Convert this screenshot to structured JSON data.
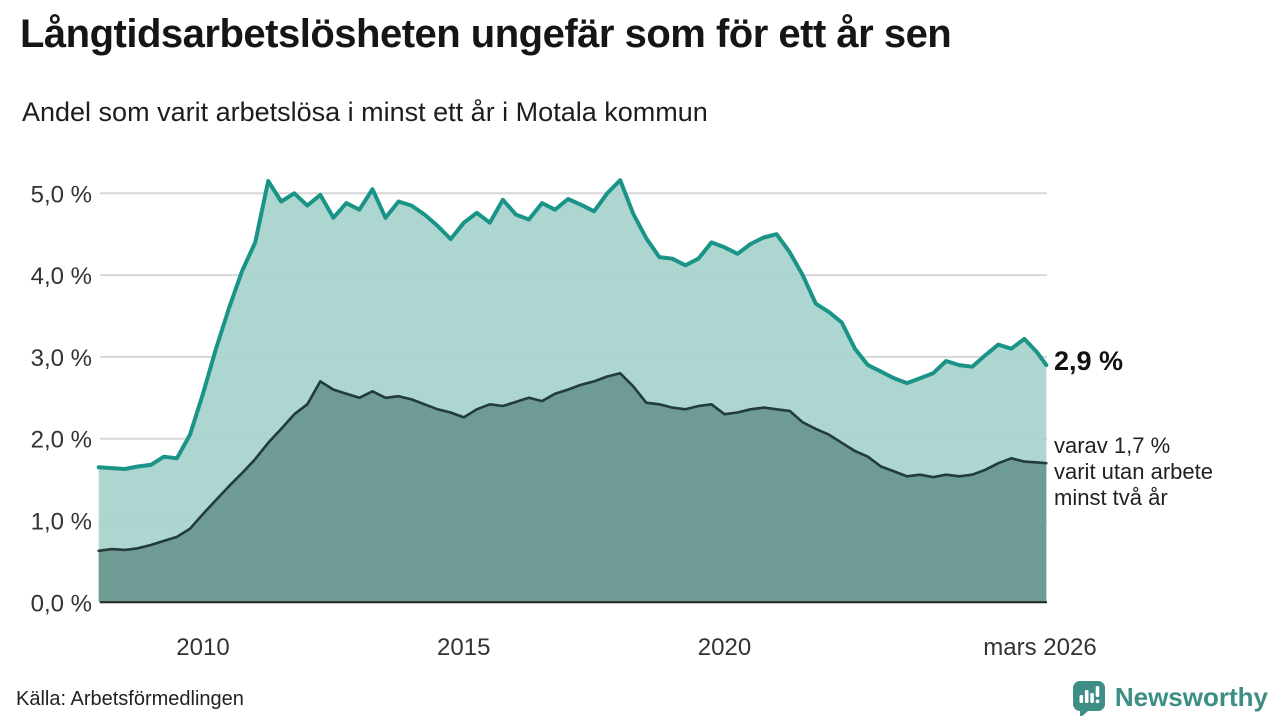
{
  "header": {
    "title": "Långtidsarbetslösheten ungefär som för ett år sen",
    "subtitle": "Andel som varit arbetslösa i minst ett år i Motala kommun"
  },
  "chart_data": {
    "type": "area",
    "title": "Långtidsarbetslösheten ungefär som för ett år sen",
    "subtitle": "Andel som varit arbetslösa i minst ett år i Motala kommun",
    "xlabel": "",
    "ylabel": "",
    "x_unit": "decimal_year",
    "xlim": [
      2008.0,
      2026.25
    ],
    "ylim": [
      0,
      5.5
    ],
    "grid": true,
    "legend_position": "none",
    "x": [
      2008.0,
      2008.25,
      2008.5,
      2008.75,
      2009.0,
      2009.25,
      2009.5,
      2009.75,
      2010.0,
      2010.25,
      2010.5,
      2010.75,
      2011.0,
      2011.25,
      2011.5,
      2011.75,
      2012.0,
      2012.25,
      2012.5,
      2012.75,
      2013.0,
      2013.25,
      2013.5,
      2013.75,
      2014.0,
      2014.25,
      2014.5,
      2014.75,
      2015.0,
      2015.25,
      2015.5,
      2015.75,
      2016.0,
      2016.25,
      2016.5,
      2016.75,
      2017.0,
      2017.25,
      2017.5,
      2017.75,
      2018.0,
      2018.25,
      2018.5,
      2018.75,
      2019.0,
      2019.25,
      2019.5,
      2019.75,
      2020.0,
      2020.25,
      2020.5,
      2020.75,
      2021.0,
      2021.25,
      2021.5,
      2021.75,
      2022.0,
      2022.25,
      2022.5,
      2022.75,
      2023.0,
      2023.25,
      2023.5,
      2023.75,
      2024.0,
      2024.25,
      2024.5,
      2024.75,
      2025.0,
      2025.25,
      2025.5,
      2025.75,
      2026.0,
      2026.17
    ],
    "series": [
      {
        "name": "Arbetslösa minst ett år (andel)",
        "line_color": "#1b9488",
        "fill_color": "#a5d3cb",
        "end_value": "2,9 %",
        "values": [
          1.65,
          1.64,
          1.63,
          1.66,
          1.68,
          1.78,
          1.76,
          2.05,
          2.55,
          3.1,
          3.6,
          4.05,
          4.4,
          5.15,
          4.9,
          5.0,
          4.85,
          4.98,
          4.7,
          4.88,
          4.8,
          5.05,
          4.7,
          4.9,
          4.85,
          4.74,
          4.6,
          4.44,
          4.64,
          4.76,
          4.64,
          4.92,
          4.74,
          4.68,
          4.88,
          4.8,
          4.93,
          4.86,
          4.78,
          5.0,
          5.16,
          4.75,
          4.45,
          4.22,
          4.2,
          4.12,
          4.2,
          4.4,
          4.34,
          4.26,
          4.38,
          4.46,
          4.5,
          4.28,
          4.0,
          3.65,
          3.55,
          3.42,
          3.1,
          2.9,
          2.82,
          2.74,
          2.68,
          2.74,
          2.8,
          2.95,
          2.9,
          2.88,
          3.02,
          3.15,
          3.1,
          3.22,
          3.05,
          2.9
        ]
      },
      {
        "name": "Varav utan arbete minst två år (andel)",
        "line_color": "#233b3a",
        "fill_color": "#6e9c94",
        "end_value": "1,7 %",
        "values": [
          0.63,
          0.65,
          0.64,
          0.66,
          0.7,
          0.75,
          0.8,
          0.9,
          1.08,
          1.25,
          1.42,
          1.58,
          1.75,
          1.95,
          2.12,
          2.3,
          2.42,
          2.7,
          2.6,
          2.55,
          2.5,
          2.58,
          2.5,
          2.52,
          2.48,
          2.42,
          2.36,
          2.32,
          2.26,
          2.36,
          2.42,
          2.4,
          2.45,
          2.5,
          2.46,
          2.55,
          2.6,
          2.66,
          2.7,
          2.76,
          2.8,
          2.64,
          2.44,
          2.42,
          2.38,
          2.36,
          2.4,
          2.42,
          2.3,
          2.32,
          2.36,
          2.38,
          2.36,
          2.34,
          2.2,
          2.12,
          2.05,
          1.95,
          1.85,
          1.78,
          1.66,
          1.6,
          1.54,
          1.56,
          1.53,
          1.56,
          1.54,
          1.56,
          1.62,
          1.7,
          1.76,
          1.72,
          1.71,
          1.7
        ]
      }
    ],
    "yticks": [
      {
        "value": 0,
        "label": "0,0 %"
      },
      {
        "value": 1,
        "label": "1,0 %"
      },
      {
        "value": 2,
        "label": "2,0 %"
      },
      {
        "value": 3,
        "label": "3,0 %"
      },
      {
        "value": 4,
        "label": "4,0 %"
      },
      {
        "value": 5,
        "label": "5,0 %"
      }
    ],
    "xticks": [
      {
        "value": 2010,
        "label": "2010"
      },
      {
        "value": 2015,
        "label": "2015"
      },
      {
        "value": 2020,
        "label": "2020"
      },
      {
        "value": 2026.05,
        "label": "mars 2026"
      }
    ]
  },
  "annotations": {
    "end_value_label": "2,9 %",
    "note_line1": "varav 1,7 %",
    "note_line2": "varit utan arbete",
    "note_line3": "minst två år"
  },
  "footer": {
    "source": "Källa: Arbetsförmedlingen",
    "brand_name": "Newsworthy"
  },
  "colors": {
    "accent_teal": "#1b9488",
    "light_fill": "#a5d3cb",
    "dark_fill": "#6e9c94",
    "dark_line": "#233b3a",
    "gridline": "#d7d7d7",
    "axis": "#222222",
    "brand_teal": "#3d8e85"
  }
}
